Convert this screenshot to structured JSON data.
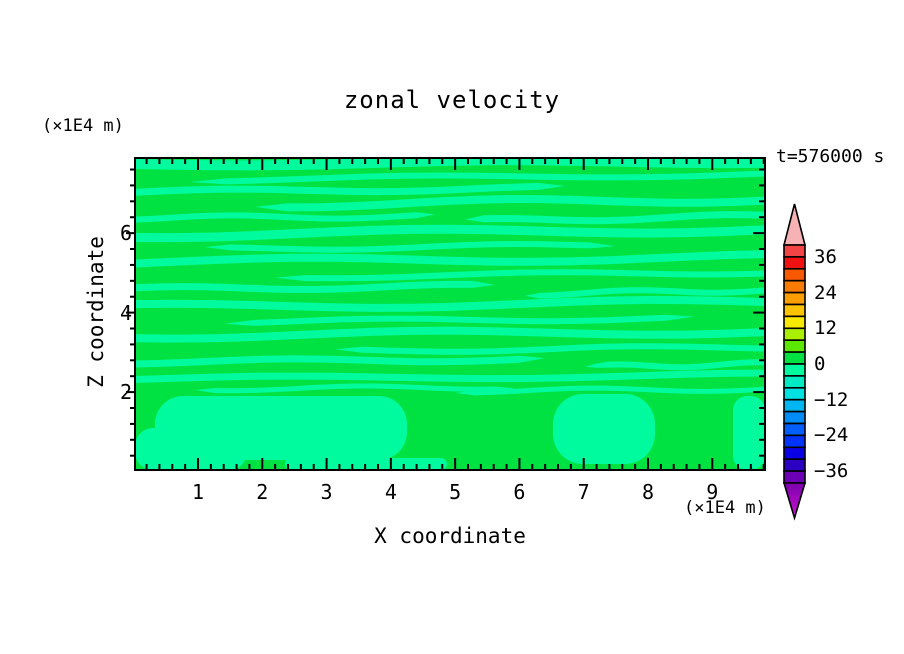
{
  "title": "zonal velocity",
  "time_label": "t=576000 s",
  "z_unit_label": "(×1E4 m)",
  "x_unit_label": "(×1E4 m)",
  "x_axis": {
    "title": "X coordinate",
    "major_tick_labels": [
      "1",
      "2",
      "3",
      "4",
      "5",
      "6",
      "7",
      "8",
      "9"
    ]
  },
  "z_axis": {
    "title": "Z coordinate",
    "major_tick_labels": [
      "2",
      "4",
      "6"
    ]
  },
  "colorbar": {
    "labels": [
      "36",
      "24",
      "12",
      "0",
      "−12",
      "−24",
      "−36"
    ],
    "box_colors": [
      "#f24444",
      "#f21111",
      "#f85800",
      "#fa7c00",
      "#fc9e00",
      "#fdc300",
      "#f9e800",
      "#abef00",
      "#5ae700",
      "#00e241",
      "#00fb9e",
      "#00eac4",
      "#00e1e1",
      "#00b6f2",
      "#008bfa",
      "#005ffd",
      "#0034fe",
      "#0a00e5",
      "#2b00c3",
      "#6b00b4"
    ],
    "top_arrow_color": "#f7b2b6",
    "bottom_arrow_color_top": "#7a00ad",
    "bottom_arrow_color_bottom": "#cc14cc"
  },
  "chart_data": {
    "type": "filled-contour",
    "title": "zonal velocity",
    "xlabel": "X coordinate",
    "ylabel": "Z coordinate",
    "axis_units": "×1E4 m",
    "time_annotation": "t=576000 s",
    "x_range": [
      0.02,
      9.82
    ],
    "y_range": [
      0.04,
      7.89
    ],
    "x_major_ticks": [
      1,
      2,
      3,
      4,
      5,
      6,
      7,
      8,
      9
    ],
    "x_minor_step": 0.2,
    "y_major_ticks": [
      2,
      4,
      6
    ],
    "y_minor_step": 0.4,
    "contour_interval": 4,
    "colorbar_labeled_levels": [
      36,
      24,
      12,
      0,
      -12,
      -24,
      -36
    ],
    "field_colors": {
      "pos_0_to_4": "#00e241",
      "neg_4_to_0": "#00fb9e"
    },
    "description": "Zonal velocity stays between -4 and +4: thin wavy horizontal bands of alternating sign fill the interior; broader alternating patches sit along the bottom boundary.",
    "bands": [
      [
        0,
        630,
        6,
        10,
        3,
        2,
        0
      ],
      [
        55,
        630,
        22,
        6,
        6,
        2,
        1.5
      ],
      [
        0,
        430,
        34,
        7,
        4,
        2,
        3.0
      ],
      [
        120,
        630,
        47,
        8,
        6,
        3,
        0.7
      ],
      [
        0,
        300,
        60,
        6,
        2,
        2,
        2.2
      ],
      [
        330,
        630,
        63,
        7,
        5,
        2,
        4.0
      ],
      [
        0,
        630,
        77,
        9,
        6,
        3,
        1.0
      ],
      [
        70,
        480,
        91,
        6,
        4,
        2,
        5.0
      ],
      [
        0,
        630,
        104,
        8,
        5,
        3,
        2.6
      ],
      [
        140,
        630,
        119,
        6,
        5,
        2,
        0.3
      ],
      [
        0,
        360,
        131,
        7,
        3,
        2,
        3.8
      ],
      [
        390,
        630,
        136,
        6,
        4,
        2,
        1.1
      ],
      [
        0,
        630,
        149,
        8,
        5,
        3,
        4.4
      ],
      [
        90,
        560,
        164,
        6,
        4,
        2,
        2.0
      ],
      [
        0,
        630,
        178,
        8,
        5,
        3,
        0.9
      ],
      [
        200,
        630,
        193,
        6,
        4,
        2,
        5.3
      ],
      [
        0,
        410,
        204,
        7,
        3,
        2,
        1.7
      ],
      [
        450,
        630,
        209,
        6,
        3,
        2,
        3.3
      ],
      [
        0,
        630,
        221,
        7,
        4,
        2,
        2.9
      ],
      [
        60,
        380,
        231,
        5,
        2,
        2,
        0.5
      ],
      [
        320,
        630,
        233,
        5,
        2,
        2,
        1.2
      ]
    ],
    "bottom_patches": [
      [
        20,
        238,
        252,
        64,
        28
      ],
      [
        418,
        236,
        102,
        70,
        30
      ],
      [
        598,
        238,
        32,
        74,
        14
      ],
      [
        0,
        270,
        112,
        42,
        18
      ],
      [
        150,
        300,
        162,
        12,
        6
      ]
    ]
  }
}
